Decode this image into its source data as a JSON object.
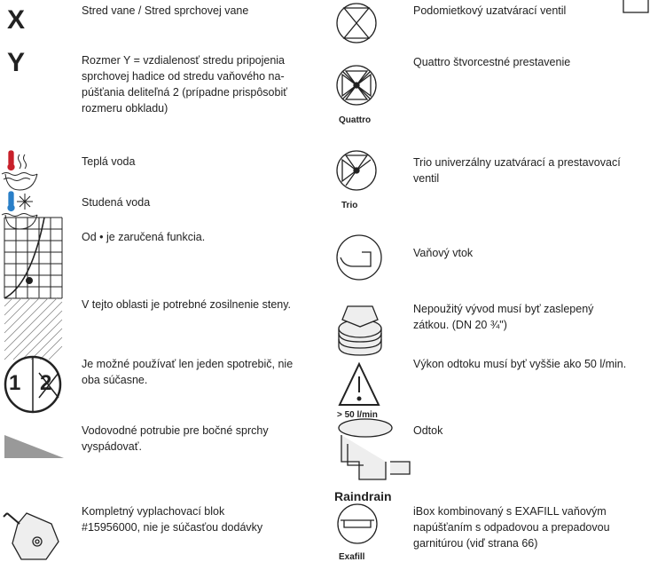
{
  "left": [
    {
      "icon_label": "X",
      "lines": [
        "Stred vane / Stred sprchovej vane"
      ]
    },
    {
      "icon_label": "Y",
      "lines": [
        "Rozmer Y = vzdialenosť stredu pripojenia",
        "sprchovej hadice od stredu vaňového na-",
        "púšťania deliteľná 2 (prípadne prispôsobiť",
        "rozmeru obkladu)"
      ]
    },
    {
      "lines": [
        "Teplá voda"
      ]
    },
    {
      "lines": [
        "Studená voda"
      ]
    },
    {
      "lines": [
        "Od • je zaručená funkcia."
      ]
    },
    {
      "lines": [
        "V tejto oblasti je potrebné zosilnenie steny."
      ]
    },
    {
      "icon_labels": [
        "1",
        "2"
      ],
      "lines": [
        "Je možné používať len jeden spotrebič, nie",
        "oba súčasne."
      ]
    },
    {
      "lines": [
        "Vodovodné potrubie pre bočné sprchy",
        "vyspádovať."
      ]
    },
    {
      "lines": [
        "Kompletný vyplachovací blok",
        "#15956000, nie je súčasťou dodávky"
      ]
    }
  ],
  "right": [
    {
      "lines": [
        "Podomietkový uzatvárací ventil"
      ]
    },
    {
      "icon_label": "Quattro",
      "lines": [
        "Quattro štvorcestné prestavenie"
      ]
    },
    {
      "icon_label": "Trio",
      "lines": [
        "Trio univerzálny uzatvárací a prestavovací",
        "ventil"
      ]
    },
    {
      "lines": [
        "Vaňový vtok"
      ]
    },
    {
      "lines": [
        "Nepoužitý vývod musí byť zaslepený",
        "zátkou. (DN 20 ¾\")"
      ]
    },
    {
      "icon_label": "> 50 l/min",
      "lines": [
        "Výkon odtoku musí byť vyššie ako 50 l/min."
      ]
    },
    {
      "icon_label": "Raindrain",
      "lines": [
        "Odtok"
      ]
    },
    {
      "icon_label": "Exafill",
      "lines": [
        "iBox kombinovaný s EXAFILL vaňovým",
        "napúšťaním s odpadovou a prepadovou",
        "garnitúrou (viď strana 66)"
      ]
    }
  ]
}
